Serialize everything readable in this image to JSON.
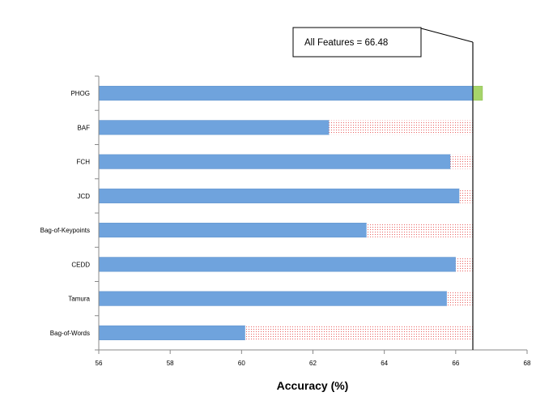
{
  "chart_data": {
    "type": "bar",
    "orientation": "horizontal",
    "categories": [
      "PHOG",
      "BAF",
      "FCH",
      "JCD",
      "Bag-of-Keypoints",
      "CEDD",
      "Tamura",
      "Bag-of-Words"
    ],
    "series": [
      {
        "values": [
          66.75,
          62.45,
          65.85,
          66.1,
          63.5,
          66.0,
          65.75,
          60.1
        ]
      }
    ],
    "reference_line": {
      "value": 66.48,
      "label": "All Features = 66.48"
    },
    "xlabel": "Accuracy (%)",
    "xlim": [
      56,
      68
    ],
    "xticks": [
      56,
      58,
      60,
      62,
      64,
      66,
      68
    ],
    "grid": false,
    "colors": {
      "bar": "#6fa3dd",
      "bar_stroke": "#5b8fcc",
      "above_reference": "#a6d46a",
      "gap_dots": "#e63a3a",
      "reference_line": "#222222"
    }
  }
}
